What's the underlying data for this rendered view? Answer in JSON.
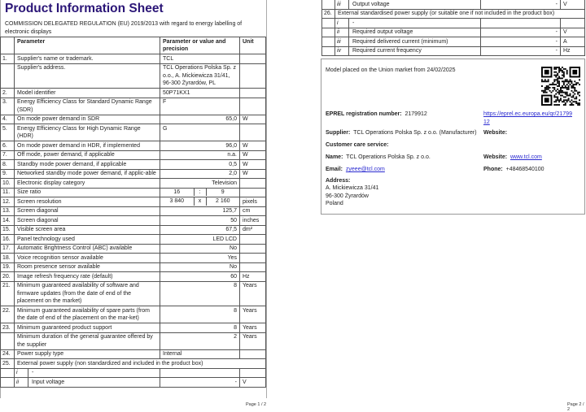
{
  "page1": {
    "title": "Product Information Sheet",
    "subtitle": "COMMISSION DELEGATED REGULATION (EU) 2019/2013 with regard to energy labelling of electronic displays",
    "headers": [
      "",
      "Parameter",
      "Parameter or value and precision",
      "Unit"
    ],
    "rows": [
      {
        "num": "1.",
        "param": "Supplier's name or trademark.",
        "value": "TCL",
        "unit": "",
        "align": "left"
      },
      {
        "num": "",
        "param": "Supplier's address.",
        "value": "TCL Operations Polska Sp. z o.o., A. Mickiewicza 31/41, 96-300 Żyrardów, PL",
        "unit": "",
        "align": "left"
      },
      {
        "num": "2.",
        "param": "Model identifier",
        "value": "50P71KX1",
        "unit": "",
        "align": "left"
      },
      {
        "num": "3.",
        "param": "Energy Efficiency Class for Standard Dynamic Range (SDR)",
        "value": "F",
        "unit": "",
        "align": "left"
      },
      {
        "num": "4.",
        "param": "On mode power demand in SDR",
        "value": "65,0",
        "unit": "W"
      },
      {
        "num": "5.",
        "param": "Energy Efficiency Class for High Dynamic Range (HDR)",
        "value": "G",
        "unit": "",
        "align": "left"
      },
      {
        "num": "6.",
        "param": "On mode power demand in HDR, if implemented",
        "value": "96,0",
        "unit": "W"
      },
      {
        "num": "7.",
        "param": "Off mode, power demand, if applicable",
        "value": "n.a.",
        "unit": "W"
      },
      {
        "num": "8.",
        "param": "Standby mode power demand, if applicable",
        "value": "0,5",
        "unit": "W"
      },
      {
        "num": "9.",
        "param": "Networked standby mode power demand, if applic-able",
        "value": "2,0",
        "unit": "W"
      },
      {
        "num": "10.",
        "param": "Electronic display category",
        "value": "Television",
        "unit": ""
      },
      {
        "num": "11.",
        "param": "Size ratio",
        "split": [
          "16",
          ":",
          "9"
        ],
        "unit": ""
      },
      {
        "num": "12.",
        "param": "Screen resolution",
        "split": [
          "3 840",
          "x",
          "2 160"
        ],
        "unit": "pixels"
      },
      {
        "num": "13.",
        "param": "Screen diagonal",
        "value": "125,7",
        "unit": "cm"
      },
      {
        "num": "14.",
        "param": "Screen diagonal",
        "value": "50",
        "unit": "inches"
      },
      {
        "num": "15.",
        "param": "Visible screen area",
        "value": "67,5",
        "unit": "dm²"
      },
      {
        "num": "16.",
        "param": "Panel technology used",
        "value": "LED LCD",
        "unit": ""
      },
      {
        "num": "17.",
        "param": "Automatic Brightness Control (ABC) available",
        "value": "No",
        "unit": ""
      },
      {
        "num": "18.",
        "param": "Voice recognition sensor available",
        "value": "Yes",
        "unit": ""
      },
      {
        "num": "19.",
        "param": "Room presence sensor available",
        "value": "No",
        "unit": ""
      },
      {
        "num": "20.",
        "param": "Image refresh frequency rate (default)",
        "value": "60",
        "unit": "Hz"
      },
      {
        "num": "21.",
        "param": "Minimum guaranteed availability of software and firmware updates (from the date of end of the placement on the market)",
        "value": "8",
        "unit": "Years"
      },
      {
        "num": "22.",
        "param": "Minimum guaranteed availability of spare parts (from the date of end of the placement on the mar-ket)",
        "value": "8",
        "unit": "Years"
      },
      {
        "num": "23.",
        "param": "Minimum guaranteed product support",
        "value": "8",
        "unit": "Years"
      },
      {
        "num": "",
        "param": "Minimum duration of the general guarantee offered by the supplier",
        "value": "2",
        "unit": "Years"
      },
      {
        "num": "24.",
        "param": "Power supply type",
        "value": "Internal",
        "unit": "",
        "align": "left"
      },
      {
        "num": "25.",
        "span": "External power supply (non standardized and included in the product box)"
      },
      {
        "num": "",
        "roman": "i",
        "param": "-",
        "value": "",
        "unit": ""
      },
      {
        "num": "",
        "roman": "ii",
        "param": "Input voltage",
        "value": "-",
        "unit": "V"
      }
    ],
    "footer": "Page 1 / 2"
  },
  "page2": {
    "rows": [
      {
        "num": "",
        "roman": "iii",
        "param": "Output voltage",
        "value": "-",
        "unit": "V"
      },
      {
        "num": "26.",
        "span": "External standardised power supply (or suitable one if not included in the product box)"
      },
      {
        "num": "",
        "roman": "i",
        "param": "-",
        "value": "",
        "unit": ""
      },
      {
        "num": "",
        "roman": "ii",
        "param": "Required output voltage",
        "value": "-",
        "unit": "V"
      },
      {
        "num": "",
        "roman": "iii",
        "param": "Required delivered current (minimum)",
        "value": "-",
        "unit": "A"
      },
      {
        "num": "",
        "roman": "iv",
        "param": "Required current frequency",
        "value": "-",
        "unit": "Hz"
      }
    ],
    "info": {
      "market": "Model placed on the Union market from 24/02/2025",
      "eprel_label": "EPREL registration number:",
      "eprel_value": "2179912",
      "eprel_link": "https://eprel.ec.europa.eu/qr/2179912",
      "supplier_label": "Supplier:",
      "supplier_value": "TCL Operations Polska Sp. z o.o. (Manufacturer)",
      "website_label": "Website:",
      "care_label": "Customer care service:",
      "name_label": "Name:",
      "name_value": "TCL Operations Polska Sp. z o.o.",
      "care_website_label": "Website:",
      "care_website_value": "www.tcl.com",
      "email_label": "Email:",
      "email_value": "zyeee@tcl.com",
      "phone_label": "Phone:",
      "phone_value": "+48468540100",
      "address_label": "Address:",
      "address_lines": [
        "A. Mickiewicza 31/41",
        "96-300 Żyrardów",
        "Poland"
      ]
    },
    "footer": "Page 2 / 2"
  },
  "colors": {
    "title": "#2b1677",
    "link": "#2a2ad0",
    "border": "#555555"
  }
}
